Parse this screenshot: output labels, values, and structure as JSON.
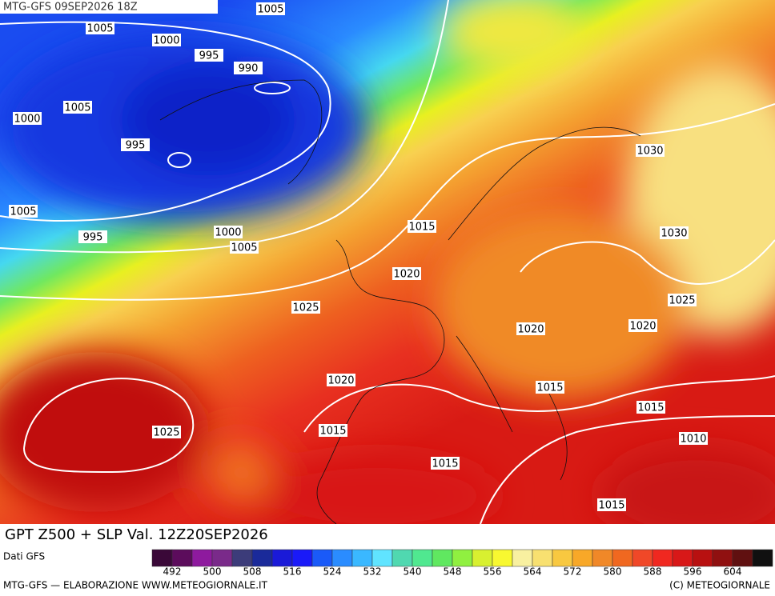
{
  "header": "MTG-GFS 09SEP2026 18Z",
  "isobar_labels": [
    "1005",
    "1005",
    "1000",
    "995",
    "990",
    "1005",
    "1000",
    "995",
    "1005",
    "995",
    "1000",
    "1005",
    "1015",
    "1020",
    "1025",
    "1030",
    "1030",
    "1025",
    "1020",
    "1020",
    "1020",
    "1015",
    "1015",
    "1025",
    "1015",
    "1010",
    "1015",
    "1015"
  ],
  "title": "GPT Z500 + SLP Val. 12Z20SEP2026",
  "source": "Dati GFS",
  "colorbar_ticks": [
    492,
    500,
    508,
    516,
    524,
    532,
    540,
    548,
    556,
    564,
    572,
    580,
    588,
    596,
    604
  ],
  "footer_left": "MTG-GFS — ELABORAZIONE WWW.METEOGIORNALE.IT",
  "footer_right": "(C) METEOGIORNALE"
}
